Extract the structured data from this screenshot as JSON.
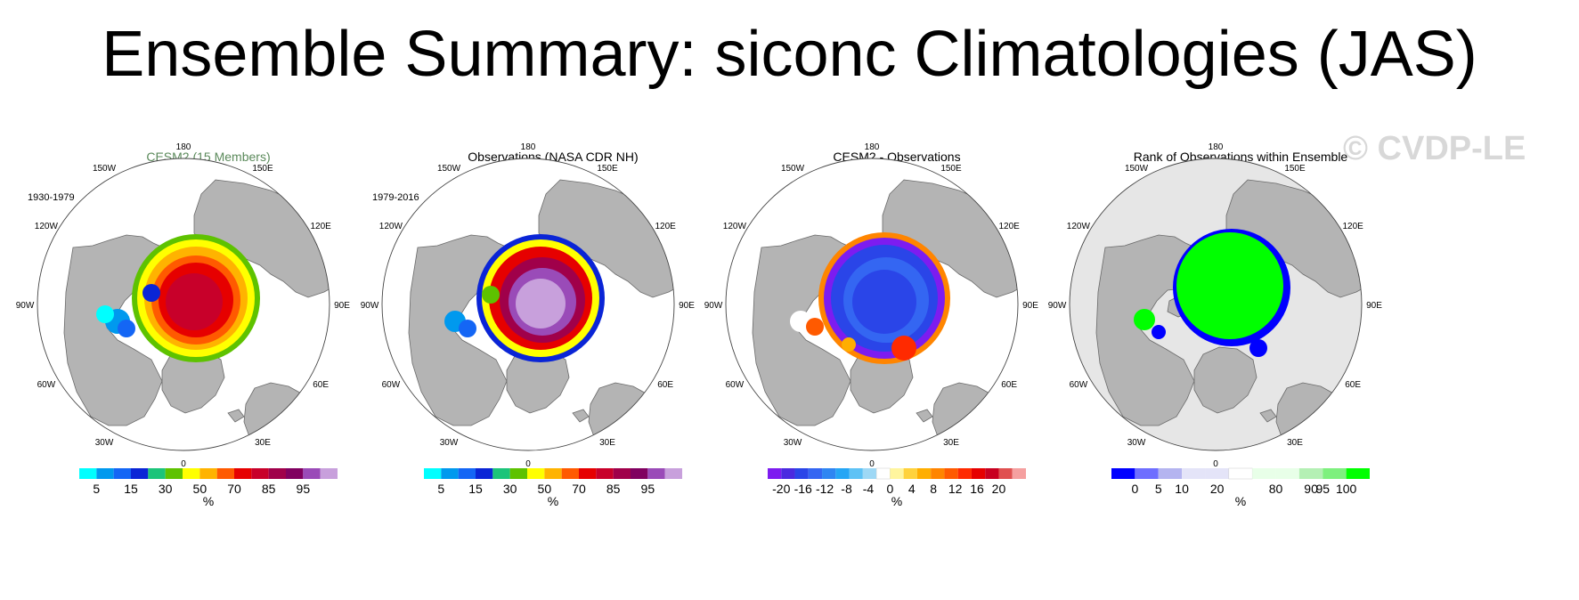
{
  "title": "Ensemble Summary: siconc Climatologies (JAS)",
  "watermark": "© CVDP-LE",
  "longitude_labels": [
    "180",
    "150E",
    "120E",
    "90E",
    "60E",
    "30E",
    "0",
    "30W",
    "60W",
    "90W",
    "120W",
    "150W"
  ],
  "panels": [
    {
      "title": "CESM2 (15 Members)",
      "title_color": "#5b8a5b",
      "period": "1930-1979",
      "field": "ensemble",
      "colorbar": {
        "colors": [
          "#00ffff",
          "#0099ee",
          "#1466f5",
          "#0a25d6",
          "#1cc47a",
          "#5ec200",
          "#ffff00",
          "#ffb300",
          "#ff5a00",
          "#e60000",
          "#c8002a",
          "#a0004a",
          "#800060",
          "#9a4bb8",
          "#c8a0dc"
        ],
        "labels": [
          "5",
          "15",
          "30",
          "50",
          "70",
          "85",
          "95"
        ],
        "label_slots": [
          1,
          3,
          5,
          7,
          9,
          11,
          13
        ],
        "unit": "%"
      }
    },
    {
      "title": "Observations (NASA CDR NH)",
      "title_color": "#000000",
      "period": "1979-2016",
      "field": "observed",
      "colorbar": {
        "colors": [
          "#00ffff",
          "#0099ee",
          "#1466f5",
          "#0a25d6",
          "#1cc47a",
          "#5ec200",
          "#ffff00",
          "#ffb300",
          "#ff5a00",
          "#e60000",
          "#c8002a",
          "#a0004a",
          "#800060",
          "#9a4bb8",
          "#c8a0dc"
        ],
        "labels": [
          "5",
          "15",
          "30",
          "50",
          "70",
          "85",
          "95"
        ],
        "label_slots": [
          1,
          3,
          5,
          7,
          9,
          11,
          13
        ],
        "unit": "%"
      }
    },
    {
      "title": "CESM2 - Observations",
      "title_color": "#000000",
      "period": "",
      "field": "difference",
      "colorbar": {
        "colors": [
          "#7d1cf0",
          "#4b2ae0",
          "#2a45e8",
          "#3466f2",
          "#2f86f2",
          "#25a6f5",
          "#5ec2f5",
          "#9ed8f5",
          "#ffffff",
          "#fff59e",
          "#ffd23c",
          "#ffae00",
          "#ff8500",
          "#ff5a00",
          "#ff2a00",
          "#e60000",
          "#c80020",
          "#e05050",
          "#f5a0a0"
        ],
        "labels": [
          "-20",
          "-16",
          "-12",
          "-8",
          "-4",
          "0",
          "4",
          "8",
          "12",
          "16",
          "20"
        ],
        "label_slots": [
          1,
          2.6,
          4.2,
          5.8,
          7.4,
          9,
          10.6,
          12.2,
          13.8,
          15.4,
          17
        ],
        "unit": "%"
      }
    },
    {
      "title": "Rank of Observations within Ensemble",
      "title_color": "#000000",
      "period": "",
      "field": "rank",
      "colorbar": {
        "colors": [
          "#0000ff",
          "#6e6eff",
          "#b4b4f0",
          "#e4e4f8",
          "#e4e4f8",
          "#ffffff",
          "#e8ffe8",
          "#e8ffe8",
          "#b4f0b4",
          "#7ef07e",
          "#00ff00"
        ],
        "labels": [
          "0",
          "5",
          "10",
          "20",
          "80",
          "90",
          "95",
          "100"
        ],
        "label_slots": [
          1,
          2,
          3,
          4.5,
          7,
          8.5,
          9,
          10
        ],
        "unit": "%"
      }
    }
  ]
}
